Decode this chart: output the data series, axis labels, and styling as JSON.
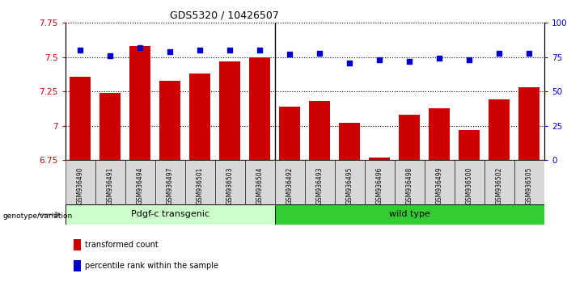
{
  "title": "GDS5320 / 10426507",
  "categories": [
    "GSM936490",
    "GSM936491",
    "GSM936494",
    "GSM936497",
    "GSM936501",
    "GSM936503",
    "GSM936504",
    "GSM936492",
    "GSM936493",
    "GSM936495",
    "GSM936496",
    "GSM936498",
    "GSM936499",
    "GSM936500",
    "GSM936502",
    "GSM936505"
  ],
  "red_values": [
    7.36,
    7.24,
    7.58,
    7.33,
    7.38,
    7.47,
    7.5,
    7.14,
    7.18,
    7.02,
    6.77,
    7.08,
    7.13,
    6.97,
    7.19,
    7.28
  ],
  "blue_values": [
    80,
    76,
    82,
    79,
    80,
    80,
    80,
    77,
    78,
    71,
    73,
    72,
    74,
    73,
    78,
    78
  ],
  "group1_label": "Pdgf-c transgenic",
  "group2_label": "wild type",
  "group1_count": 7,
  "group2_count": 9,
  "ylim_left": [
    6.75,
    7.75
  ],
  "ylim_right": [
    0,
    100
  ],
  "yticks_left": [
    6.75,
    7.0,
    7.25,
    7.5,
    7.75
  ],
  "ytick_labels_left": [
    "6.75",
    "7",
    "7.25",
    "7.5",
    "7.75"
  ],
  "yticks_right": [
    0,
    25,
    50,
    75,
    100
  ],
  "ytick_labels_right": [
    "0",
    "25",
    "50",
    "75",
    "100%"
  ],
  "red_color": "#cc0000",
  "blue_color": "#0000cc",
  "group1_color": "#ccffcc",
  "group2_color": "#33cc33",
  "bar_width": 0.7,
  "bar_bottom": 6.75,
  "legend_items": [
    "transformed count",
    "percentile rank within the sample"
  ],
  "genotype_label": "genotype/variation"
}
